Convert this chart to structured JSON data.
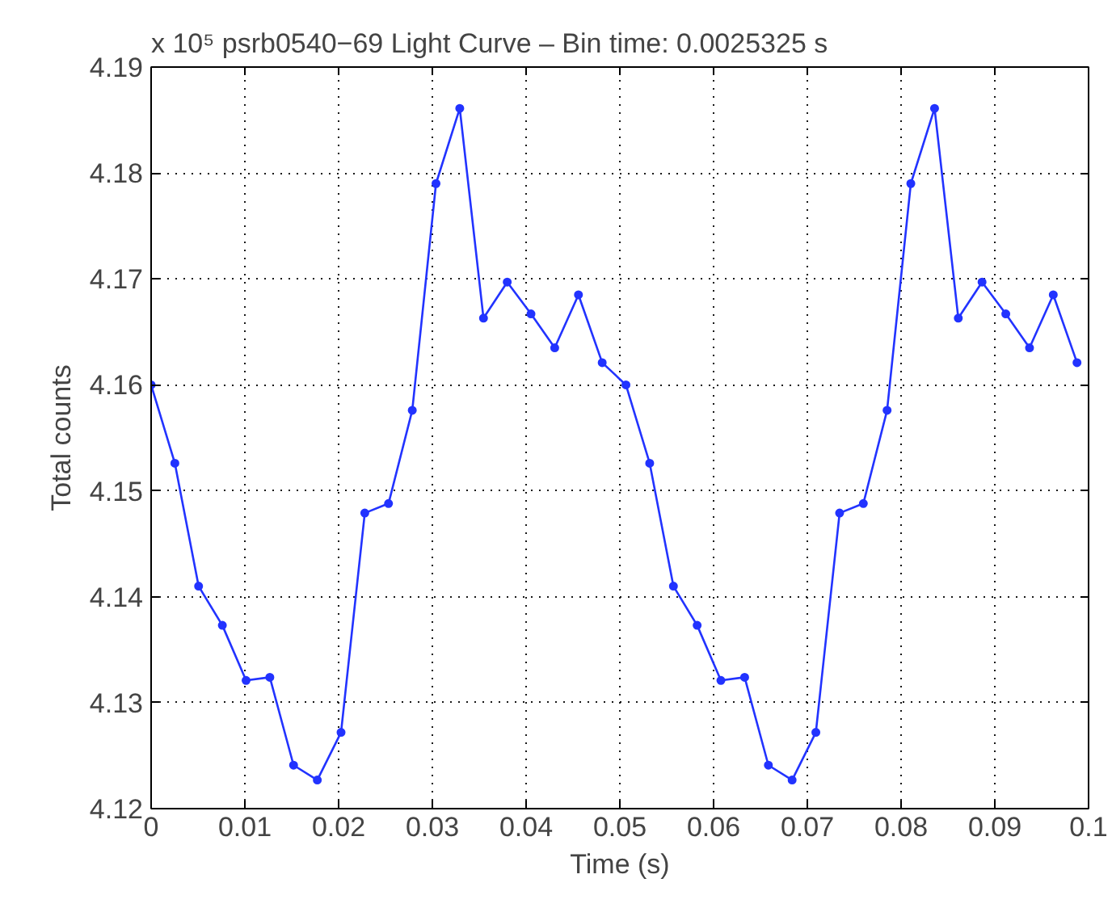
{
  "chart_data": {
    "type": "line",
    "title": "x 10⁵ psrb0540−69 Light Curve – Bin time: 0.0025325 s",
    "xlabel": "Time (s)",
    "ylabel": "Total counts",
    "x": [
      0,
      0.0025325,
      0.005065,
      0.0075975,
      0.01013,
      0.0126625,
      0.015195,
      0.0177275,
      0.02026,
      0.0227925,
      0.025325,
      0.0278575,
      0.03039,
      0.0329225,
      0.035455,
      0.0379875,
      0.04052,
      0.0430525,
      0.045585,
      0.0481175,
      0.05065,
      0.0531825,
      0.055715,
      0.0582475,
      0.06078,
      0.0633125,
      0.065845,
      0.0683775,
      0.07091,
      0.0734425,
      0.075975,
      0.0785075,
      0.08104,
      0.0835725,
      0.086105,
      0.0886375,
      0.09117,
      0.0937025,
      0.096235,
      0.0987675
    ],
    "series": [
      {
        "color": "#2233ff",
        "values": [
          4.16,
          4.1526,
          4.141,
          4.1373,
          4.1321,
          4.1324,
          4.1241,
          4.1227,
          4.1272,
          4.1479,
          4.1488,
          4.1576,
          4.179,
          4.1861,
          4.1663,
          4.1697,
          4.1667,
          4.1635,
          4.1685,
          4.1621,
          4.16,
          4.1526,
          4.141,
          4.1373,
          4.1321,
          4.1324,
          4.1241,
          4.1227,
          4.1272,
          4.1479,
          4.1488,
          4.1576,
          4.179,
          4.1861,
          4.1663,
          4.1697,
          4.1667,
          4.1635,
          4.1685,
          4.1621
        ]
      }
    ],
    "xlim": [
      0,
      0.1
    ],
    "ylim": [
      4.12,
      4.19
    ],
    "xticks": [
      0,
      0.01,
      0.02,
      0.03,
      0.04,
      0.05,
      0.06,
      0.07,
      0.08,
      0.09,
      0.1
    ],
    "yticks": [
      4.12,
      4.13,
      4.14,
      4.15,
      4.16,
      4.17,
      4.18,
      4.19
    ],
    "grid": true,
    "marker": "circle",
    "line_style": "solid"
  }
}
